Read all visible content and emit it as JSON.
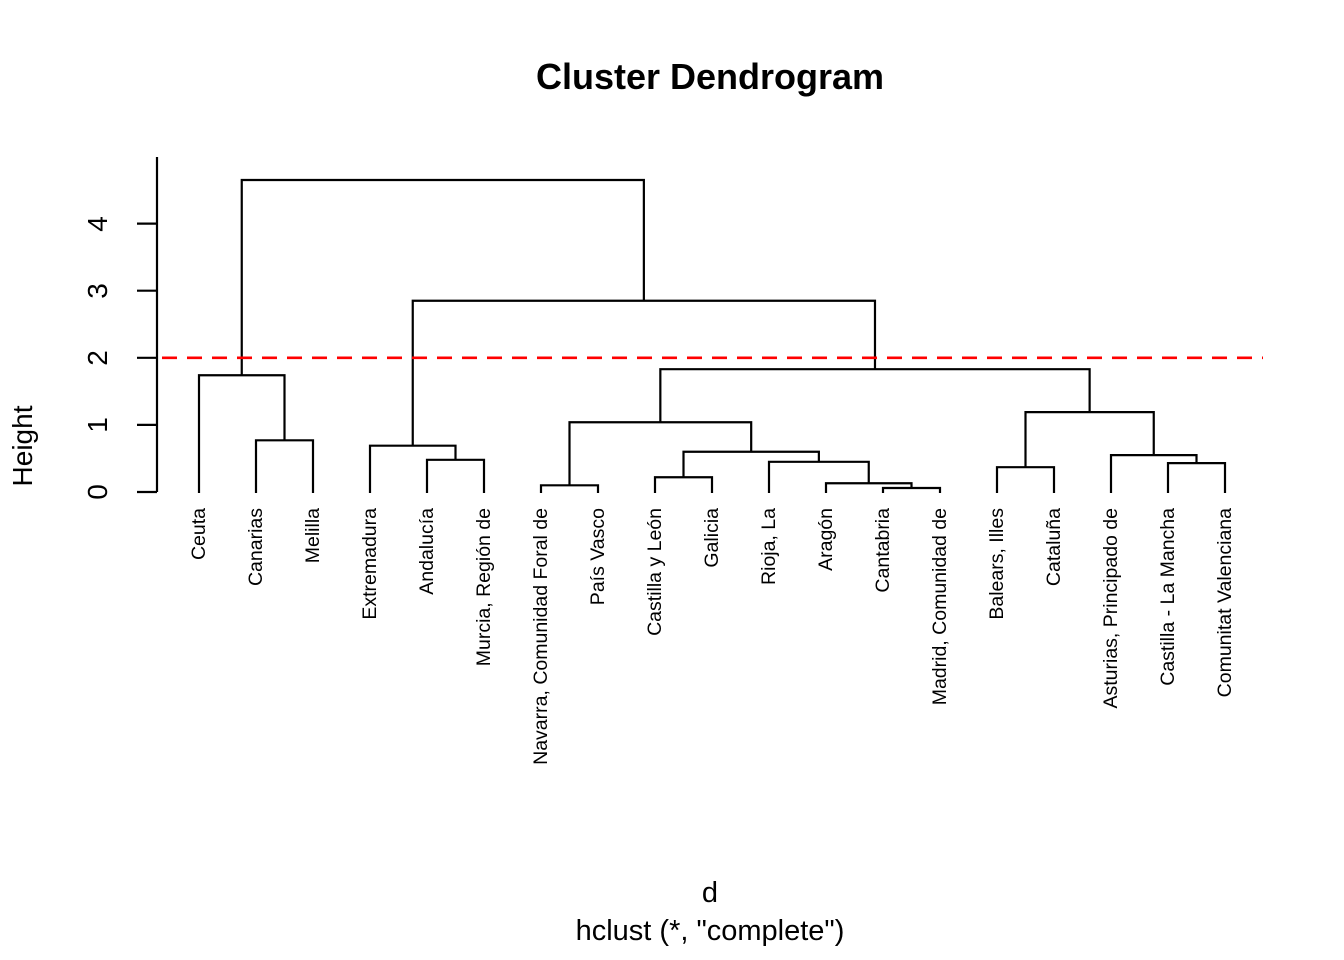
{
  "chart": {
    "title": "Cluster Dendrogram",
    "ylabel": "Height",
    "xlabel": "d",
    "subtitle": "hclust (*, \"complete\")"
  },
  "chart_data": {
    "type": "dendrogram",
    "title": "Cluster Dendrogram",
    "ylabel": "Height",
    "xlabel": "d",
    "subtitle": "hclust (*, \"complete\")",
    "y_ticks": [
      0,
      1,
      2,
      3,
      4
    ],
    "ylim": [
      0,
      5
    ],
    "grid": false,
    "line_color": "#000000",
    "cut_line": {
      "height": 2,
      "color": "#ff0000",
      "style": "dashed"
    },
    "leaf_order": [
      "Ceuta",
      "Canarias",
      "Melilla",
      "Extremadura",
      "Andalucía",
      "Murcia, Región de",
      "Navarra, Comunidad Foral de",
      "País Vasco",
      "Castilla y León",
      "Galicia",
      "Rioja, La",
      "Aragón",
      "Cantabria",
      "Madrid, Comunidad de",
      "Balears, Illes",
      "Cataluña",
      "Asturias, Principado de",
      "Castilla - La Mancha",
      "Comunitat Valenciana"
    ],
    "tree": {
      "h": 4.65,
      "c": [
        {
          "h": 1.74,
          "c": [
            {
              "leaf": "Ceuta"
            },
            {
              "h": 0.77,
              "c": [
                {
                  "leaf": "Canarias"
                },
                {
                  "leaf": "Melilla"
                }
              ]
            }
          ]
        },
        {
          "h": 2.85,
          "c": [
            {
              "h": 0.69,
              "c": [
                {
                  "leaf": "Extremadura"
                },
                {
                  "h": 0.48,
                  "c": [
                    {
                      "leaf": "Andalucía"
                    },
                    {
                      "leaf": "Murcia, Región de"
                    }
                  ]
                }
              ]
            },
            {
              "h": 1.83,
              "c": [
                {
                  "h": 1.04,
                  "c": [
                    {
                      "h": 0.1,
                      "c": [
                        {
                          "leaf": "Navarra, Comunidad Foral de"
                        },
                        {
                          "leaf": "País Vasco"
                        }
                      ]
                    },
                    {
                      "h": 0.6,
                      "c": [
                        {
                          "h": 0.22,
                          "c": [
                            {
                              "leaf": "Castilla y León"
                            },
                            {
                              "leaf": "Galicia"
                            }
                          ]
                        },
                        {
                          "h": 0.45,
                          "c": [
                            {
                              "leaf": "Rioja, La"
                            },
                            {
                              "h": 0.13,
                              "c": [
                                {
                                  "leaf": "Aragón"
                                },
                                {
                                  "h": 0.06,
                                  "c": [
                                    {
                                      "leaf": "Cantabria"
                                    },
                                    {
                                      "leaf": "Madrid, Comunidad de"
                                    }
                                  ]
                                }
                              ]
                            }
                          ]
                        }
                      ]
                    }
                  ]
                },
                {
                  "h": 1.19,
                  "c": [
                    {
                      "h": 0.37,
                      "c": [
                        {
                          "leaf": "Balears, Illes"
                        },
                        {
                          "leaf": "Cataluña"
                        }
                      ]
                    },
                    {
                      "h": 0.55,
                      "c": [
                        {
                          "leaf": "Asturias, Principado de"
                        },
                        {
                          "h": 0.43,
                          "c": [
                            {
                              "leaf": "Castilla - La Mancha"
                            },
                            {
                              "leaf": "Comunitat Valenciana"
                            }
                          ]
                        }
                      ]
                    }
                  ]
                }
              ]
            }
          ]
        }
      ]
    }
  }
}
